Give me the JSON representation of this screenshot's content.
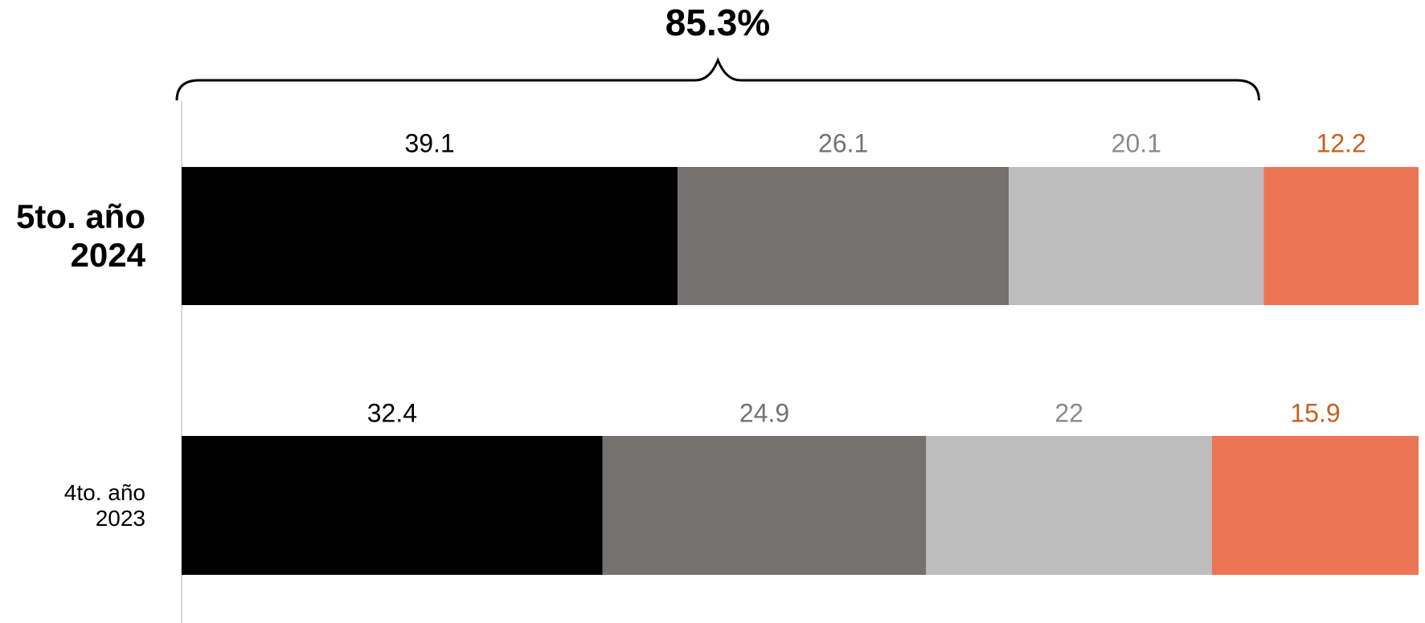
{
  "chart_data": {
    "type": "stacked-bar-horizontal",
    "annotation": "85.3%",
    "categories": [
      "5to. año 2024",
      "4to. año 2023"
    ],
    "series": [
      {
        "color": "#000000",
        "label_color": "#000000",
        "values": [
          39.1,
          32.4
        ]
      },
      {
        "color": "#757170",
        "label_color": "#757170",
        "values": [
          26.1,
          24.9
        ]
      },
      {
        "color": "#bdbdbd",
        "label_color": "#8a8a8a",
        "values": [
          20.1,
          22
        ]
      },
      {
        "color": "#ec7555",
        "label_color": "#c8601e",
        "values": [
          12.2,
          15.9
        ]
      }
    ]
  }
}
